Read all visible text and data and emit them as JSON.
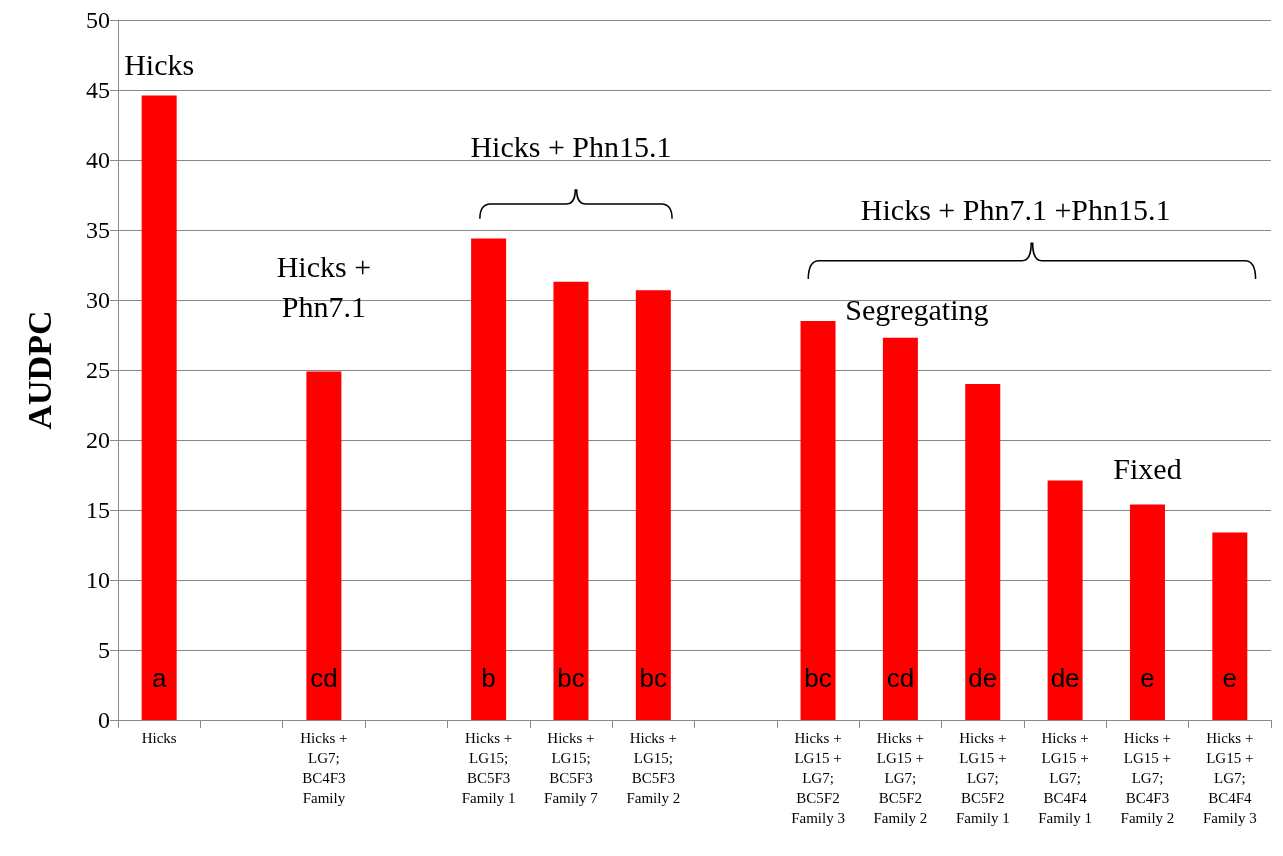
{
  "chart_data": {
    "type": "bar",
    "ylabel": "AUDPC",
    "categories": [
      "Hicks",
      null,
      "Hicks +\nLG7;\nBC4F3\nFamily",
      null,
      "Hicks +\nLG15;\nBC5F3\nFamily 1",
      "Hicks +\nLG15;\nBC5F3\nFamily 7",
      "Hicks +\nLG15;\nBC5F3\nFamily 2",
      null,
      "Hicks +\nLG15 +\nLG7;\nBC5F2\nFamily 3",
      "Hicks +\nLG15 +\nLG7;\nBC5F2\nFamily 2",
      "Hicks +\nLG15 +\nLG7;\nBC5F2\nFamily 1",
      "Hicks +\nLG15 +\nLG7;\nBC4F4\nFamily 1",
      "Hicks +\nLG15 +\nLG7;\nBC4F3\nFamily 2",
      "Hicks +\nLG15 +\nLG7;\nBC4F4\nFamily 3"
    ],
    "values": [
      44.6,
      null,
      24.9,
      null,
      34.4,
      31.3,
      30.7,
      null,
      28.5,
      27.3,
      24.0,
      17.1,
      15.4,
      13.4
    ],
    "color": "#ff0000",
    "ylim": [
      0,
      50
    ],
    "yticks": [
      0,
      5,
      10,
      15,
      20,
      25,
      30,
      35,
      40,
      45,
      50
    ],
    "grid": "y",
    "annotations": [
      "Hicks",
      "Hicks +\nPhn7.1",
      "Hicks + Phn15.1",
      "Hicks + Phn7.1 +Phn15.1",
      "Segregating",
      "Fixed",
      "a",
      "cd",
      "b",
      "bc",
      "bc",
      "bc",
      "cd",
      "de",
      "de",
      "e",
      "e"
    ]
  }
}
